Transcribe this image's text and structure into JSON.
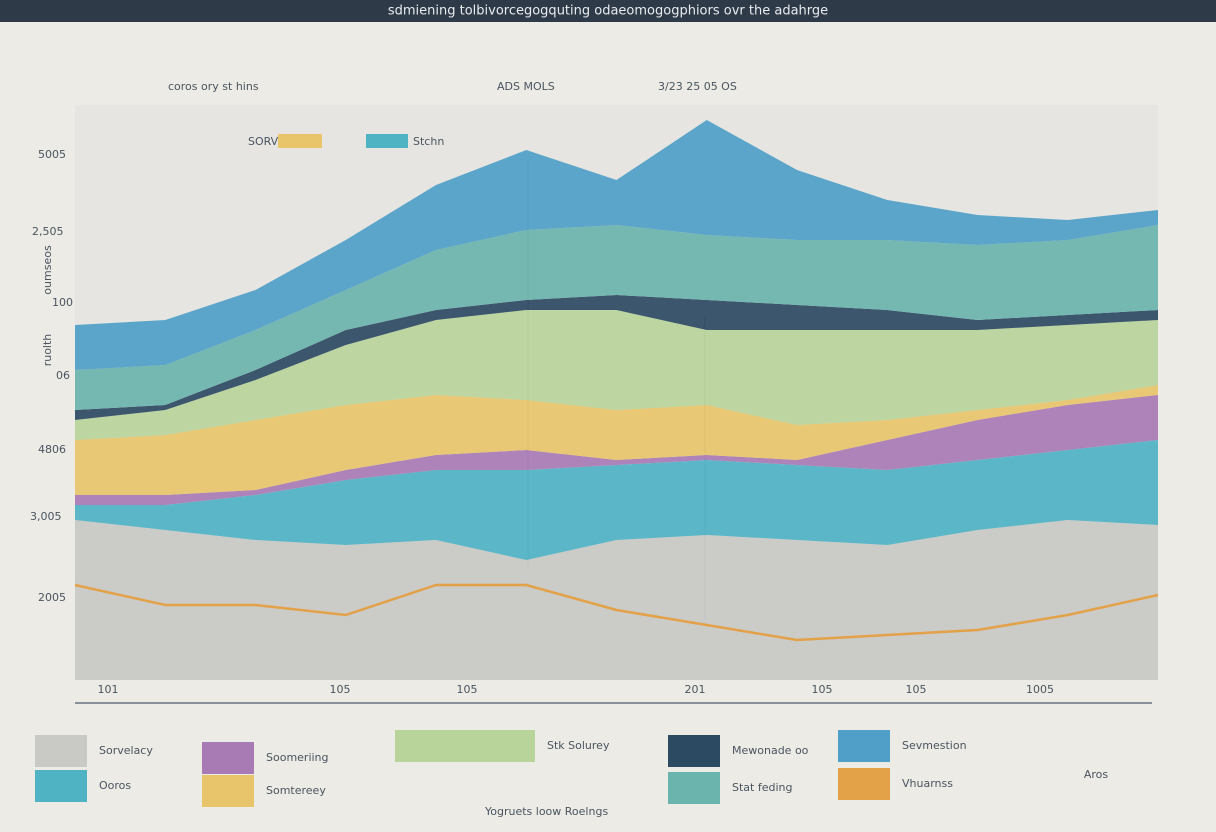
{
  "chart_data": {
    "type": "area",
    "stacked": true,
    "title": "sdmiening tolbivorcegogquting odaeomogogphiors ovr the adahrge",
    "caption": "Yogruets loow Roelngs",
    "annotations": [
      "coros ory st hins",
      "ADS MOLS",
      "3/23 25 05 OS",
      "SORVs",
      "Stchn",
      "5005",
      "2,505",
      "100",
      "06",
      "4806",
      "3,005",
      "2005",
      "oumseos",
      "ruolth",
      "101",
      "105",
      "105",
      "201",
      "105",
      "105",
      "1005",
      "Aros"
    ],
    "categories": [
      null,
      null,
      null,
      null,
      null,
      null,
      null,
      null,
      null,
      null,
      null,
      null,
      null
    ],
    "ylim": [
      0,
      115
    ],
    "series": [
      {
        "name": "Sorvelacy",
        "color": "#c9c9c5",
        "values": [
          32,
          30,
          28,
          27,
          28,
          24,
          28,
          29,
          28,
          27,
          30,
          32,
          31
        ]
      },
      {
        "name": "Ooros",
        "color": "#4fb3c4",
        "values": [
          3,
          5,
          9,
          13,
          14,
          18,
          15,
          15,
          15,
          15,
          14,
          14,
          17
        ]
      },
      {
        "name": "Soomeriing",
        "color": "#a97bb5",
        "values": [
          2,
          2,
          1,
          2,
          3,
          4,
          1,
          1,
          1,
          6,
          8,
          9,
          9
        ]
      },
      {
        "name": "Somtereey",
        "color": "#e8c56a",
        "values": [
          11,
          12,
          14,
          13,
          12,
          10,
          10,
          10,
          7,
          4,
          2,
          1,
          2
        ]
      },
      {
        "name": "Stk Solurey",
        "color": "#b9d49b",
        "values": [
          4,
          5,
          8,
          12,
          15,
          18,
          20,
          15,
          19,
          18,
          16,
          15,
          13
        ]
      },
      {
        "name": "Mewonade oo",
        "color": "#2d4a63",
        "values": [
          2,
          1,
          2,
          3,
          2,
          2,
          3,
          6,
          5,
          4,
          2,
          2,
          2
        ]
      },
      {
        "name": "Stat feding",
        "color": "#6bb3ad",
        "values": [
          8,
          8,
          8,
          8,
          12,
          14,
          14,
          13,
          13,
          14,
          15,
          15,
          17
        ]
      },
      {
        "name": "Sevmestion",
        "color": "#4f9fc8",
        "values": [
          9,
          9,
          8,
          10,
          13,
          16,
          9,
          23,
          14,
          8,
          6,
          4,
          3
        ]
      },
      {
        "name": "Vhuarnss",
        "color": "#e3a148",
        "kind": "line",
        "values": [
          19,
          15,
          15,
          13,
          19,
          19,
          14,
          11,
          8,
          9,
          10,
          13,
          17
        ]
      }
    ]
  }
}
